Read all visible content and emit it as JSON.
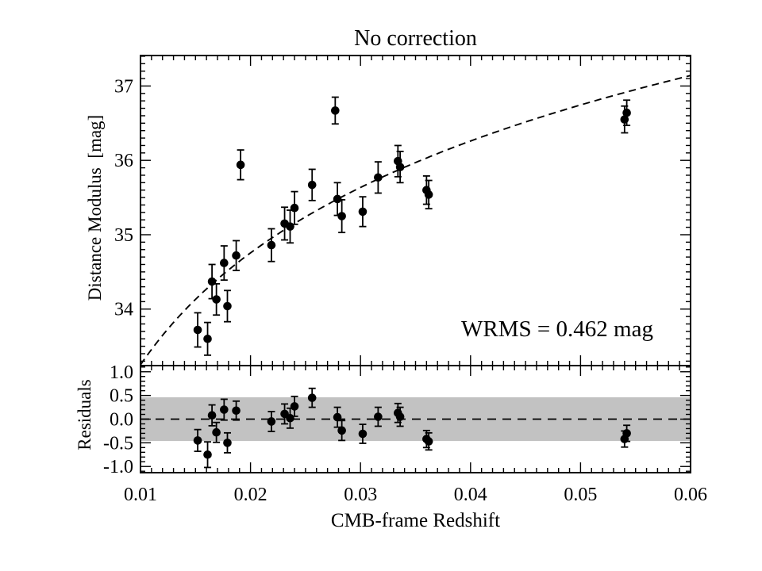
{
  "figure": {
    "title": "No correction",
    "xlabel": "CMB-frame Redshift",
    "ylabel_main": "Distance Modulus  [mag]",
    "ylabel_residuals": "Residuals",
    "wrms_annotation": "WRMS = 0.462 mag",
    "colors": {
      "ink": "#000000",
      "band_gray": "#c2c2c2",
      "background": "#ffffff"
    }
  },
  "chart_data": [
    {
      "type": "scatter",
      "panel": "hubble-diagram",
      "title": "No correction",
      "xlabel": "CMB-frame Redshift",
      "ylabel": "Distance Modulus [mag]",
      "annotation": "WRMS = 0.462 mag",
      "grid": false,
      "legend": "none",
      "xlim": [
        0.01,
        0.06
      ],
      "ylim": [
        33.24,
        37.41
      ],
      "x_minor_step": 0.001,
      "y_minor_step": 0.1,
      "xticks": [
        {
          "v": 0.01,
          "label": "0.01"
        },
        {
          "v": 0.02,
          "label": "0.02"
        },
        {
          "v": 0.03,
          "label": "0.03"
        },
        {
          "v": 0.04,
          "label": "0.04"
        },
        {
          "v": 0.05,
          "label": "0.05"
        },
        {
          "v": 0.06,
          "label": "0.06"
        }
      ],
      "yticks": [
        {
          "v": 34,
          "label": "34"
        },
        {
          "v": 35,
          "label": "35"
        },
        {
          "v": 36,
          "label": "36"
        },
        {
          "v": 37,
          "label": "37"
        }
      ],
      "model_curve": {
        "style": "dashed",
        "formula": "mu = 43.25 + 5*log10(z)",
        "offset": 43.25,
        "slope": 5
      },
      "points": [
        {
          "z": 0.0152,
          "mu": 33.72,
          "err": 0.23
        },
        {
          "z": 0.0161,
          "mu": 33.6,
          "err": 0.22
        },
        {
          "z": 0.0165,
          "mu": 34.37,
          "err": 0.23
        },
        {
          "z": 0.0169,
          "mu": 34.13,
          "err": 0.21
        },
        {
          "z": 0.0176,
          "mu": 34.62,
          "err": 0.23
        },
        {
          "z": 0.0179,
          "mu": 34.04,
          "err": 0.21
        },
        {
          "z": 0.0187,
          "mu": 34.72,
          "err": 0.2
        },
        {
          "z": 0.0191,
          "mu": 35.94,
          "err": 0.2
        },
        {
          "z": 0.0219,
          "mu": 34.86,
          "err": 0.22
        },
        {
          "z": 0.0231,
          "mu": 35.15,
          "err": 0.22
        },
        {
          "z": 0.0236,
          "mu": 35.11,
          "err": 0.22
        },
        {
          "z": 0.024,
          "mu": 35.36,
          "err": 0.22
        },
        {
          "z": 0.0256,
          "mu": 35.67,
          "err": 0.21
        },
        {
          "z": 0.0277,
          "mu": 36.67,
          "err": 0.18
        },
        {
          "z": 0.0279,
          "mu": 35.48,
          "err": 0.22
        },
        {
          "z": 0.0283,
          "mu": 35.25,
          "err": 0.22
        },
        {
          "z": 0.0302,
          "mu": 35.31,
          "err": 0.2
        },
        {
          "z": 0.0316,
          "mu": 35.77,
          "err": 0.21
        },
        {
          "z": 0.0334,
          "mu": 35.99,
          "err": 0.21
        },
        {
          "z": 0.0336,
          "mu": 35.91,
          "err": 0.21
        },
        {
          "z": 0.036,
          "mu": 35.6,
          "err": 0.19
        },
        {
          "z": 0.0362,
          "mu": 35.54,
          "err": 0.19
        },
        {
          "z": 0.054,
          "mu": 36.55,
          "err": 0.18
        },
        {
          "z": 0.0542,
          "mu": 36.64,
          "err": 0.17
        }
      ]
    },
    {
      "type": "scatter",
      "panel": "residuals",
      "ylabel": "Residuals",
      "grid": false,
      "legend": "none",
      "xlim": [
        0.01,
        0.06
      ],
      "ylim": [
        -1.13,
        1.13
      ],
      "x_minor_step": 0.001,
      "y_minor_step": 0.1,
      "xticks": [
        {
          "v": 0.01,
          "label": "0.01"
        },
        {
          "v": 0.02,
          "label": "0.02"
        },
        {
          "v": 0.03,
          "label": "0.03"
        },
        {
          "v": 0.04,
          "label": "0.04"
        },
        {
          "v": 0.05,
          "label": "0.05"
        },
        {
          "v": 0.06,
          "label": "0.06"
        }
      ],
      "yticks": [
        {
          "v": 1.0,
          "label": "1.0"
        },
        {
          "v": 0.5,
          "label": "0.5"
        },
        {
          "v": 0.0,
          "label": "0.0"
        },
        {
          "v": -0.5,
          "label": "-0.5"
        },
        {
          "v": -1.0,
          "label": "-1.0"
        }
      ],
      "band": {
        "min": -0.462,
        "max": 0.462,
        "color": "#c2c2c2"
      },
      "zero_line": {
        "style": "dashed",
        "value": 0.0
      },
      "points": [
        {
          "z": 0.0152,
          "res": -0.45,
          "err": 0.23
        },
        {
          "z": 0.0161,
          "res": -0.75,
          "err": 0.27
        },
        {
          "z": 0.0165,
          "res": 0.08,
          "err": 0.22
        },
        {
          "z": 0.0169,
          "res": -0.28,
          "err": 0.21
        },
        {
          "z": 0.0176,
          "res": 0.2,
          "err": 0.22
        },
        {
          "z": 0.0179,
          "res": -0.5,
          "err": 0.21
        },
        {
          "z": 0.0187,
          "res": 0.18,
          "err": 0.2
        },
        {
          "z": 0.0219,
          "res": -0.05,
          "err": 0.21
        },
        {
          "z": 0.0231,
          "res": 0.11,
          "err": 0.21
        },
        {
          "z": 0.0236,
          "res": 0.02,
          "err": 0.21
        },
        {
          "z": 0.024,
          "res": 0.27,
          "err": 0.21
        },
        {
          "z": 0.0256,
          "res": 0.45,
          "err": 0.2
        },
        {
          "z": 0.0279,
          "res": 0.04,
          "err": 0.21
        },
        {
          "z": 0.0283,
          "res": -0.24,
          "err": 0.21
        },
        {
          "z": 0.0302,
          "res": -0.31,
          "err": 0.2
        },
        {
          "z": 0.0316,
          "res": 0.05,
          "err": 0.2
        },
        {
          "z": 0.0334,
          "res": 0.13,
          "err": 0.2
        },
        {
          "z": 0.0336,
          "res": 0.05,
          "err": 0.2
        },
        {
          "z": 0.036,
          "res": -0.42,
          "err": 0.18
        },
        {
          "z": 0.0362,
          "res": -0.47,
          "err": 0.18
        },
        {
          "z": 0.054,
          "res": -0.42,
          "err": 0.17
        },
        {
          "z": 0.0542,
          "res": -0.3,
          "err": 0.17
        }
      ]
    }
  ]
}
